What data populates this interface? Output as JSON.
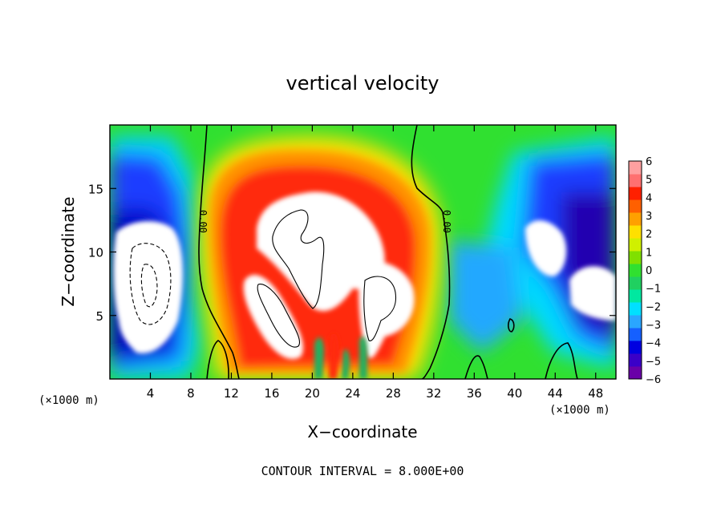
{
  "chart_data": {
    "type": "heatmap",
    "title": "vertical velocity",
    "xlabel": "X−coordinate",
    "ylabel": "Z−coordinate",
    "x_unit_left": "(×1000 m)",
    "x_unit_right": "(×1000 m)",
    "xlim": [
      0,
      50
    ],
    "ylim": [
      0,
      20
    ],
    "xticks": [
      "4",
      "8",
      "12",
      "16",
      "20",
      "24",
      "28",
      "32",
      "36",
      "40",
      "44",
      "48"
    ],
    "yticks": [
      "5",
      "10",
      "15"
    ],
    "colorbar": {
      "ticks": [
        "6",
        "5",
        "4",
        "3",
        "2",
        "1",
        "0",
        "−1",
        "−2",
        "−3",
        "−4",
        "−5",
        "−6"
      ],
      "range": [
        -6,
        6
      ],
      "colors": [
        "#6a00a8",
        "#3a00c8",
        "#0000e0",
        "#1560ff",
        "#2aa6ff",
        "#00e0ff",
        "#00e8a0",
        "#20d060",
        "#30e030",
        "#80e000",
        "#d0f000",
        "#ffe000",
        "#ffa000",
        "#ff6000",
        "#ff2000",
        "#ff7070",
        "#ffa0a0"
      ]
    },
    "contour_labels": [
      "0.00",
      "0.00"
    ],
    "footer": "CONTOUR INTERVAL = 8.000E+00"
  }
}
